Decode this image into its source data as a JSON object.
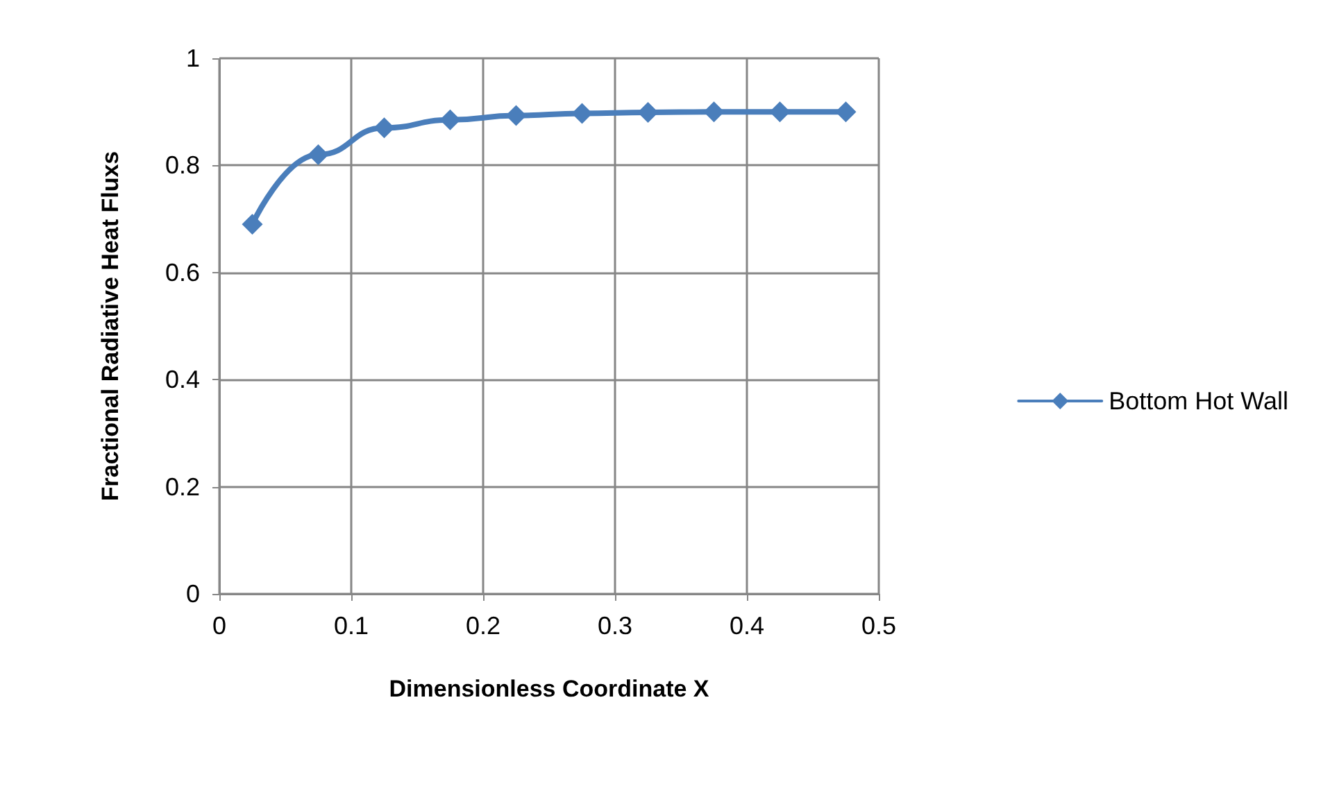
{
  "chart_data": {
    "type": "line",
    "xlabel": "Dimensionless Coordinate X",
    "ylabel": "Fractional Radiative Heat Fluxs",
    "x": [
      0.025,
      0.075,
      0.125,
      0.175,
      0.225,
      0.275,
      0.325,
      0.375,
      0.425,
      0.475
    ],
    "series": [
      {
        "name": "Bottom Hot Wall",
        "color": "#4a7ebb",
        "values": [
          0.69,
          0.82,
          0.87,
          0.885,
          0.893,
          0.897,
          0.899,
          0.9,
          0.9,
          0.9
        ]
      }
    ],
    "xlim": [
      0,
      0.5
    ],
    "xticks": [
      0,
      0.1,
      0.2,
      0.3,
      0.4,
      0.5
    ],
    "ylim": [
      0,
      1
    ],
    "yticks": [
      0,
      0.2,
      0.4,
      0.6,
      0.8,
      1
    ],
    "grid": true,
    "legend": "right",
    "marker": "diamond",
    "line_style": "solid"
  }
}
